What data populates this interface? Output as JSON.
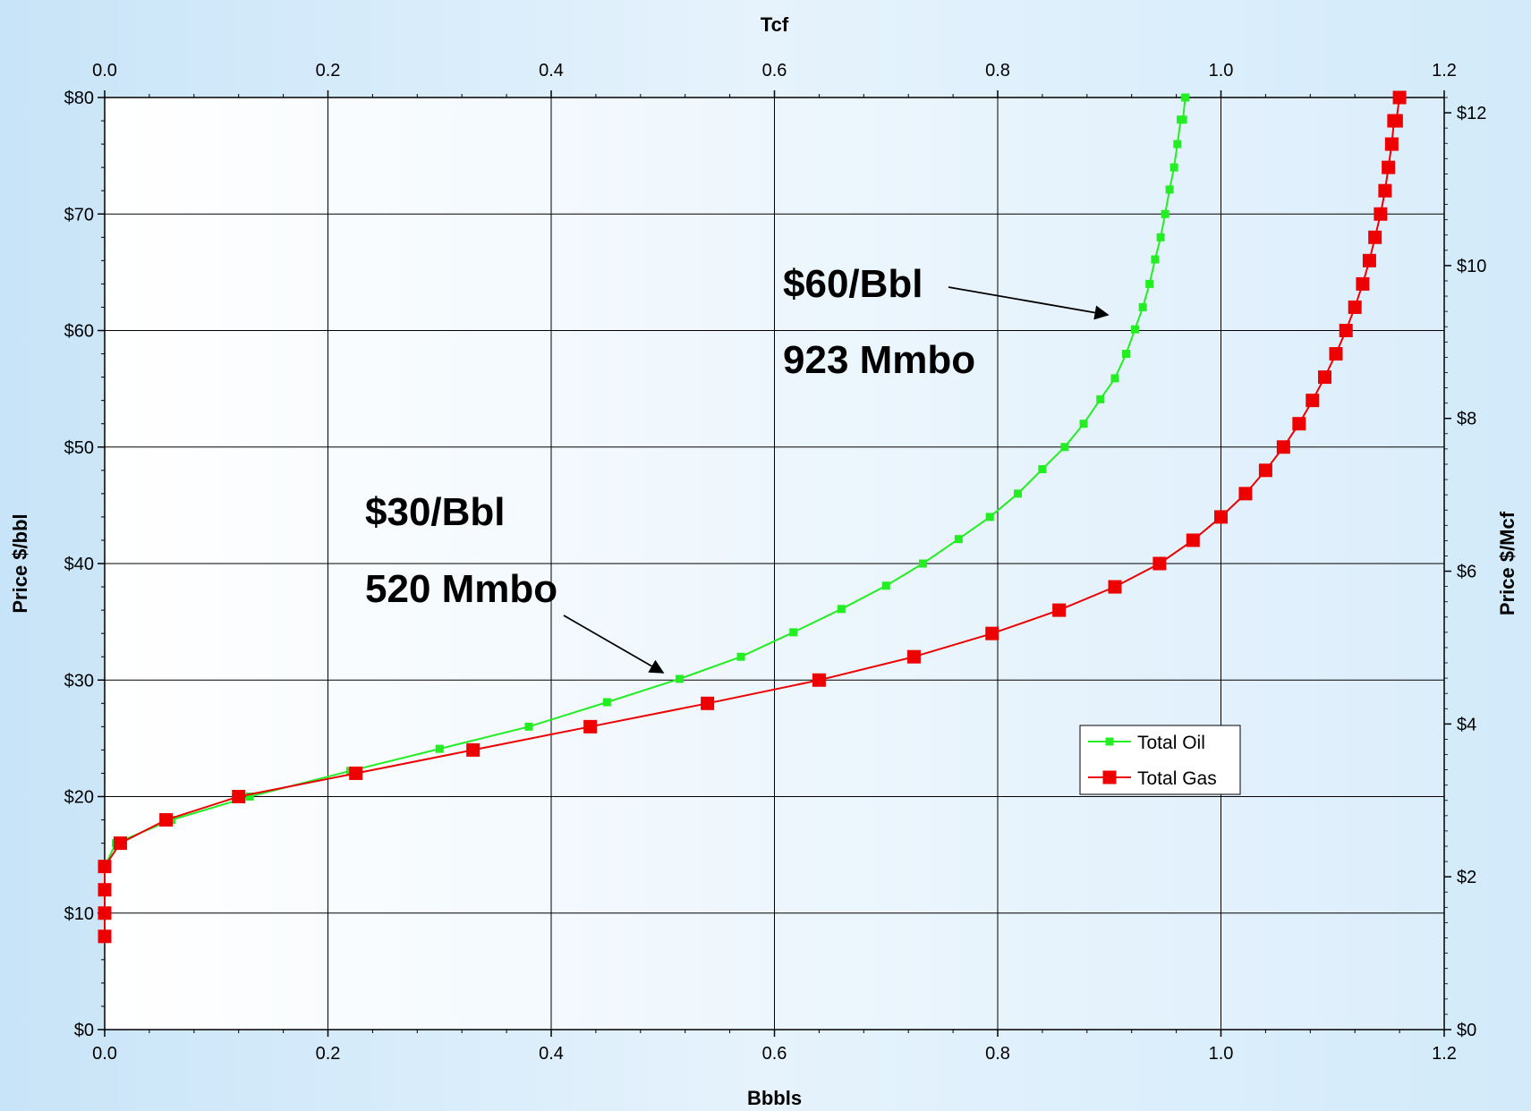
{
  "chart_data": {
    "type": "line",
    "xlabel": "Bbbls",
    "x2label": "Tcf",
    "ylabel": "Price $/bbl",
    "y2label": "Price $/Mcf",
    "xlim": [
      0,
      1.2
    ],
    "x2lim": [
      0,
      1.2
    ],
    "ylim": [
      0,
      80
    ],
    "y2lim": [
      0,
      12.2
    ],
    "x_ticks": [
      "0.0",
      "0.2",
      "0.4",
      "0.6",
      "0.8",
      "1.0",
      "1.2"
    ],
    "x2_ticks": [
      "0.0",
      "0.2",
      "0.4",
      "0.6",
      "0.8",
      "1.0",
      "1.2"
    ],
    "y_ticks": [
      "$0",
      "$10",
      "$20",
      "$30",
      "$40",
      "$50",
      "$60",
      "$70",
      "$80"
    ],
    "y2_ticks": [
      "$0",
      "$2",
      "$4",
      "$6",
      "$8",
      "$10",
      "$12"
    ],
    "grid": true,
    "legend_position": "lower-right",
    "series": [
      {
        "name": "Total Oil",
        "color": "#22ee22",
        "x": [
          0.0,
          0.0,
          0.0,
          0.0,
          0.01,
          0.06,
          0.13,
          0.22,
          0.3,
          0.38,
          0.45,
          0.515,
          0.57,
          0.617,
          0.66,
          0.7,
          0.733,
          0.765,
          0.793,
          0.818,
          0.84,
          0.86,
          0.877,
          0.892,
          0.905,
          0.915,
          0.923,
          0.93,
          0.936,
          0.941,
          0.946,
          0.95,
          0.954,
          0.958,
          0.961,
          0.964,
          0.966,
          0.968
        ],
        "y": [
          8,
          10,
          12,
          14,
          16,
          18,
          20,
          22.2,
          24.1,
          26,
          28.1,
          30.1,
          32,
          34.1,
          36.1,
          38.1,
          40,
          42.1,
          44,
          46,
          48.1,
          50,
          52,
          54.1,
          55.9,
          58,
          60.1,
          62,
          64,
          66.1,
          68,
          70,
          72.1,
          74,
          76,
          78.1,
          78.1,
          80
        ]
      },
      {
        "name": "Total Gas",
        "color": "#ee0000",
        "x": [
          0.0,
          0.0,
          0.0,
          0.0,
          0.014,
          0.055,
          0.12,
          0.225,
          0.33,
          0.435,
          0.54,
          0.64,
          0.725,
          0.795,
          0.855,
          0.905,
          0.945,
          0.975,
          1.0,
          1.022,
          1.04,
          1.056,
          1.07,
          1.082,
          1.093,
          1.103,
          1.112,
          1.12,
          1.127,
          1.133,
          1.138,
          1.143,
          1.147,
          1.15,
          1.153,
          1.155,
          1.157,
          1.16
        ],
        "y": [
          8,
          10,
          12,
          14,
          16,
          18,
          20,
          22,
          24,
          26,
          28,
          30,
          32,
          34,
          36,
          38,
          40,
          42,
          44,
          46,
          48,
          50,
          52,
          54,
          56,
          58,
          60,
          62,
          64,
          66,
          68,
          70,
          72,
          74,
          76,
          78,
          78,
          80
        ]
      }
    ],
    "annotations": [
      {
        "line1": "$60/Bbl",
        "line2": "923 Mmbo",
        "target_x": 0.923,
        "target_y": 60.1
      },
      {
        "line1": "$30/Bbl",
        "line2": "520 Mmbo",
        "target_x": 0.515,
        "target_y": 30.1
      }
    ]
  }
}
